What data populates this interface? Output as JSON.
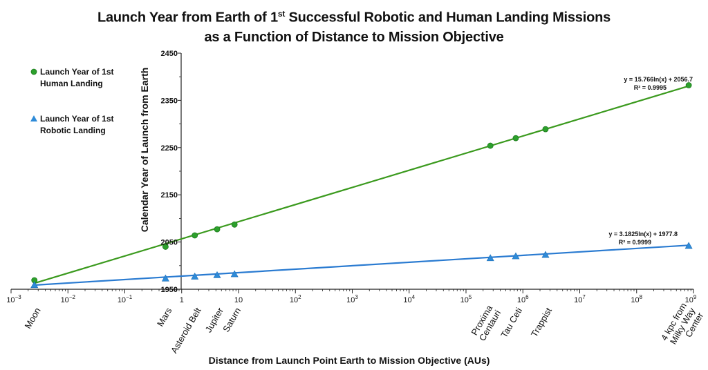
{
  "title": {
    "line1_pre": "Launch Year from Earth of 1",
    "line1_sup": "st",
    "line1_post": " Successful Robotic and Human Landing Missions",
    "line2": "as a Function of Distance to Mission Objective"
  },
  "colors": {
    "human": "#2ca02c",
    "human_line": "#3b9a1e",
    "robotic": "#2e8bd8",
    "robotic_line": "#2a7bd1",
    "axis": "#222222"
  },
  "chart_data": {
    "type": "scatter",
    "x_scale": "log",
    "xlim_exp": [
      -3,
      9
    ],
    "ylim": [
      1950,
      2450
    ],
    "y_ticks": [
      1950,
      2050,
      2150,
      2250,
      2350,
      2450
    ],
    "x_tick_labels": [
      {
        "base": "10",
        "exp": "−3"
      },
      {
        "base": "10",
        "exp": "−2"
      },
      {
        "base": "10",
        "exp": "−1"
      },
      {
        "base": "1",
        "exp": ""
      },
      {
        "base": "10",
        "exp": ""
      },
      {
        "base": "10",
        "exp": "2"
      },
      {
        "base": "10",
        "exp": "3"
      },
      {
        "base": "10",
        "exp": "4"
      },
      {
        "base": "10",
        "exp": "5"
      },
      {
        "base": "10",
        "exp": "6"
      },
      {
        "base": "10",
        "exp": "7"
      },
      {
        "base": "10",
        "exp": "8"
      },
      {
        "base": "10",
        "exp": "9"
      }
    ],
    "xlabel": "Distance from Launch Point Earth to Mission Objective (AUs)",
    "ylabel": "Calendar Year of Launch from Earth",
    "categories": [
      {
        "label": "Moon",
        "lines": [
          "Moon"
        ],
        "x": 0.00257
      },
      {
        "label": "Mars",
        "lines": [
          "Mars"
        ],
        "x": 0.52
      },
      {
        "label": "Asteroid Belt",
        "lines": [
          "Asteroid Belt"
        ],
        "x": 1.7
      },
      {
        "label": "Jupiter",
        "lines": [
          "Jupiter"
        ],
        "x": 4.2
      },
      {
        "label": "Saturn",
        "lines": [
          "Saturn"
        ],
        "x": 8.5
      },
      {
        "label": "Proxima Centauri",
        "lines": [
          "Proxima",
          "Centauri"
        ],
        "x": 268000
      },
      {
        "label": "Tau Ceti",
        "lines": [
          "Tau Ceti"
        ],
        "x": 750000
      },
      {
        "label": "Trappist",
        "lines": [
          "Trappist"
        ],
        "x": 2500000
      },
      {
        "label": "4 kpc from Milky Way Center",
        "lines": [
          "4 kpc from",
          "Milky Way",
          "Center"
        ],
        "x": 825000000
      }
    ],
    "series": [
      {
        "name": "Launch Year of 1st Human Landing",
        "legend_lines": [
          "Launch Year of 1st",
          "Human Landing"
        ],
        "marker": "circle",
        "points": [
          {
            "x": 0.00257,
            "y": 1969
          },
          {
            "x": 0.52,
            "y": 2040
          },
          {
            "x": 1.7,
            "y": 2064
          },
          {
            "x": 4.2,
            "y": 2077
          },
          {
            "x": 8.5,
            "y": 2087
          },
          {
            "x": 268000,
            "y": 2254
          },
          {
            "x": 750000,
            "y": 2270
          },
          {
            "x": 2500000,
            "y": 2289
          },
          {
            "x": 825000000,
            "y": 2382
          }
        ],
        "trend": {
          "a": 15.766,
          "b": 2056.7
        },
        "equation": "y = 15.766ln(x) + 2056.7",
        "r2": "R² = 0.9995"
      },
      {
        "name": "Launch Year of 1st Robotic Landing",
        "legend_lines": [
          "Launch Year of 1st",
          "Robotic Landing"
        ],
        "marker": "triangle",
        "points": [
          {
            "x": 0.00257,
            "y": 1959
          },
          {
            "x": 0.52,
            "y": 1973
          },
          {
            "x": 1.7,
            "y": 1977
          },
          {
            "x": 4.2,
            "y": 1980
          },
          {
            "x": 8.5,
            "y": 1982
          },
          {
            "x": 268000,
            "y": 2016
          },
          {
            "x": 750000,
            "y": 2020
          },
          {
            "x": 2500000,
            "y": 2023
          },
          {
            "x": 825000000,
            "y": 2042
          }
        ],
        "trend": {
          "a": 3.1825,
          "b": 1977.8
        },
        "equation": "y = 3.1825ln(x) + 1977.8",
        "r2": "R² = 0.9999"
      }
    ]
  }
}
